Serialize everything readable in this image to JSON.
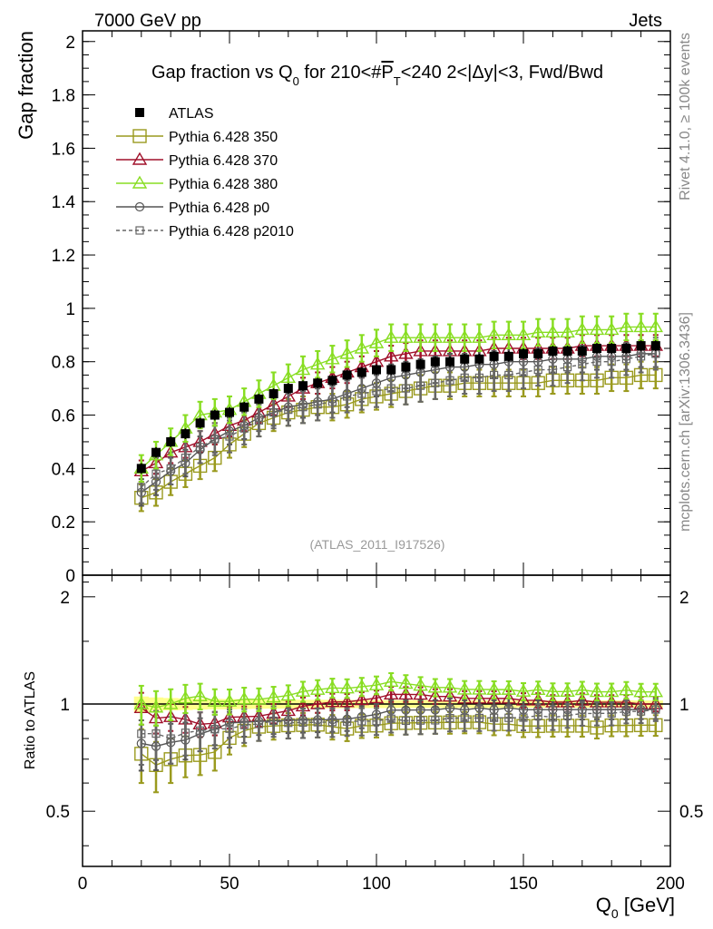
{
  "header": {
    "left": "7000 GeV pp",
    "right": "Jets"
  },
  "side": {
    "rivet": "Rivet 4.1.0, ≥ 100k events",
    "mcplots": "mcplots.cern.ch [arXiv:1306.3436]"
  },
  "chart_data": {
    "type": "line",
    "title": "Gap fraction vs Q0 for 210<#PT<240  2<|Δy|<3, Fwd/Bwd",
    "analysis": "(ATLAS_2011_I917526)",
    "xlabel": "Q0 [GeV]",
    "ylabel": "Gap fraction",
    "ratio_ylabel": "Ratio to ATLAS",
    "xlim": [
      0,
      200
    ],
    "ylim": [
      0,
      2.04
    ],
    "ratio_ylim": [
      0.35,
      2.3
    ],
    "xticks": [
      "0",
      "50",
      "100",
      "150",
      "200"
    ],
    "yticks": [
      "0",
      "0.2",
      "0.4",
      "0.6",
      "0.8",
      "1",
      "1.2",
      "1.4",
      "1.6",
      "1.8",
      "2"
    ],
    "ratio_yticks": [
      "0.5",
      "1",
      "2"
    ],
    "x": [
      20,
      25,
      30,
      35,
      40,
      45,
      50,
      55,
      60,
      65,
      70,
      75,
      80,
      85,
      90,
      95,
      100,
      105,
      110,
      115,
      120,
      125,
      130,
      135,
      140,
      145,
      150,
      155,
      160,
      165,
      170,
      175,
      180,
      185,
      190,
      195
    ],
    "data": {
      "name": "ATLAS",
      "values": [
        0.4,
        0.46,
        0.5,
        0.53,
        0.57,
        0.6,
        0.61,
        0.63,
        0.66,
        0.68,
        0.7,
        0.71,
        0.72,
        0.73,
        0.75,
        0.76,
        0.77,
        0.77,
        0.78,
        0.79,
        0.8,
        0.8,
        0.81,
        0.81,
        0.82,
        0.82,
        0.83,
        0.83,
        0.84,
        0.84,
        0.84,
        0.85,
        0.85,
        0.85,
        0.86,
        0.86
      ],
      "errors": [
        0.02,
        0.02,
        0.02,
        0.02,
        0.02,
        0.02,
        0.02,
        0.02,
        0.02,
        0.02,
        0.02,
        0.02,
        0.02,
        0.02,
        0.02,
        0.02,
        0.02,
        0.02,
        0.02,
        0.02,
        0.02,
        0.02,
        0.02,
        0.02,
        0.02,
        0.02,
        0.02,
        0.02,
        0.02,
        0.02,
        0.02,
        0.02,
        0.02,
        0.02,
        0.02,
        0.02
      ]
    },
    "series": [
      {
        "name": "Pythia 6.428 350",
        "color": "#9a9a1e",
        "marker": "square",
        "dashed": false,
        "values": [
          0.29,
          0.31,
          0.35,
          0.38,
          0.41,
          0.44,
          0.49,
          0.53,
          0.57,
          0.59,
          0.61,
          0.62,
          0.63,
          0.63,
          0.64,
          0.66,
          0.67,
          0.68,
          0.69,
          0.7,
          0.71,
          0.71,
          0.72,
          0.72,
          0.72,
          0.72,
          0.72,
          0.72,
          0.73,
          0.73,
          0.73,
          0.73,
          0.74,
          0.74,
          0.75,
          0.75
        ],
        "errors": [
          0.05,
          0.05,
          0.05,
          0.05,
          0.05,
          0.05,
          0.05,
          0.05,
          0.05,
          0.05,
          0.05,
          0.05,
          0.05,
          0.05,
          0.05,
          0.05,
          0.05,
          0.05,
          0.05,
          0.05,
          0.05,
          0.05,
          0.05,
          0.05,
          0.05,
          0.05,
          0.05,
          0.05,
          0.05,
          0.05,
          0.05,
          0.05,
          0.05,
          0.05,
          0.05,
          0.05
        ]
      },
      {
        "name": "Pythia 6.428 370",
        "color": "#a0102a",
        "marker": "triangle",
        "dashed": false,
        "values": [
          0.39,
          0.42,
          0.46,
          0.48,
          0.5,
          0.53,
          0.56,
          0.58,
          0.61,
          0.64,
          0.67,
          0.7,
          0.72,
          0.74,
          0.76,
          0.78,
          0.8,
          0.82,
          0.83,
          0.84,
          0.84,
          0.84,
          0.84,
          0.84,
          0.85,
          0.85,
          0.85,
          0.85,
          0.85,
          0.85,
          0.86,
          0.86,
          0.86,
          0.86,
          0.86,
          0.86
        ],
        "errors": [
          0.04,
          0.04,
          0.04,
          0.04,
          0.04,
          0.04,
          0.04,
          0.04,
          0.04,
          0.04,
          0.04,
          0.04,
          0.04,
          0.04,
          0.04,
          0.04,
          0.04,
          0.04,
          0.04,
          0.04,
          0.04,
          0.04,
          0.04,
          0.04,
          0.04,
          0.04,
          0.04,
          0.04,
          0.04,
          0.04,
          0.04,
          0.04,
          0.04,
          0.04,
          0.04,
          0.04
        ]
      },
      {
        "name": "Pythia 6.428 380",
        "color": "#88dd22",
        "marker": "triangle",
        "dashed": false,
        "values": [
          0.4,
          0.45,
          0.5,
          0.55,
          0.6,
          0.61,
          0.62,
          0.65,
          0.68,
          0.71,
          0.74,
          0.77,
          0.79,
          0.81,
          0.83,
          0.85,
          0.87,
          0.89,
          0.89,
          0.89,
          0.89,
          0.89,
          0.89,
          0.89,
          0.9,
          0.9,
          0.9,
          0.91,
          0.91,
          0.91,
          0.92,
          0.92,
          0.92,
          0.93,
          0.93,
          0.93
        ],
        "errors": [
          0.05,
          0.05,
          0.05,
          0.05,
          0.05,
          0.05,
          0.05,
          0.05,
          0.05,
          0.05,
          0.05,
          0.05,
          0.05,
          0.05,
          0.05,
          0.05,
          0.05,
          0.05,
          0.05,
          0.05,
          0.05,
          0.05,
          0.05,
          0.05,
          0.05,
          0.05,
          0.05,
          0.05,
          0.05,
          0.05,
          0.05,
          0.05,
          0.05,
          0.05,
          0.05,
          0.05
        ]
      },
      {
        "name": "Pythia 6.428 p0",
        "color": "#555555",
        "marker": "circle",
        "dashed": false,
        "values": [
          0.31,
          0.35,
          0.39,
          0.42,
          0.47,
          0.51,
          0.54,
          0.56,
          0.59,
          0.61,
          0.63,
          0.64,
          0.65,
          0.66,
          0.68,
          0.7,
          0.72,
          0.74,
          0.75,
          0.76,
          0.77,
          0.78,
          0.78,
          0.79,
          0.79,
          0.8,
          0.8,
          0.8,
          0.81,
          0.81,
          0.81,
          0.82,
          0.82,
          0.82,
          0.83,
          0.83
        ],
        "errors": [
          0.05,
          0.05,
          0.05,
          0.05,
          0.05,
          0.05,
          0.05,
          0.05,
          0.05,
          0.05,
          0.05,
          0.05,
          0.05,
          0.05,
          0.05,
          0.05,
          0.05,
          0.05,
          0.05,
          0.05,
          0.05,
          0.05,
          0.05,
          0.05,
          0.05,
          0.05,
          0.05,
          0.05,
          0.05,
          0.05,
          0.05,
          0.05,
          0.05,
          0.05,
          0.05,
          0.05
        ]
      },
      {
        "name": "Pythia 6.428 p2010",
        "color": "#666666",
        "marker": "square-small",
        "dashed": true,
        "values": [
          0.33,
          0.38,
          0.4,
          0.44,
          0.48,
          0.51,
          0.52,
          0.55,
          0.58,
          0.61,
          0.62,
          0.63,
          0.64,
          0.65,
          0.67,
          0.68,
          0.69,
          0.7,
          0.7,
          0.71,
          0.72,
          0.73,
          0.74,
          0.74,
          0.75,
          0.75,
          0.76,
          0.77,
          0.77,
          0.78,
          0.79,
          0.8,
          0.8,
          0.81,
          0.82,
          0.83
        ],
        "errors": [
          0.06,
          0.06,
          0.06,
          0.06,
          0.06,
          0.06,
          0.06,
          0.06,
          0.06,
          0.06,
          0.06,
          0.06,
          0.06,
          0.06,
          0.06,
          0.06,
          0.06,
          0.06,
          0.06,
          0.06,
          0.06,
          0.06,
          0.06,
          0.06,
          0.06,
          0.06,
          0.06,
          0.06,
          0.06,
          0.06,
          0.06,
          0.06,
          0.06,
          0.06,
          0.06,
          0.06
        ]
      }
    ]
  }
}
